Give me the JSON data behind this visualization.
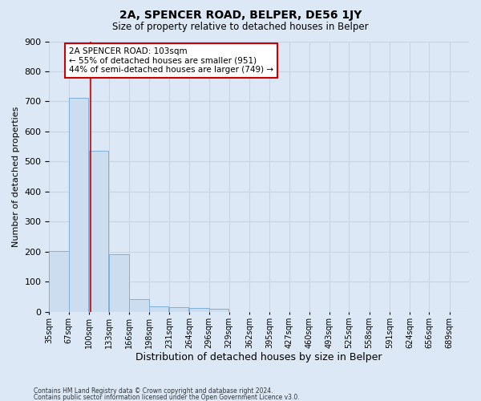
{
  "title": "2A, SPENCER ROAD, BELPER, DE56 1JY",
  "subtitle": "Size of property relative to detached houses in Belper",
  "xlabel": "Distribution of detached houses by size in Belper",
  "ylabel": "Number of detached properties",
  "bar_edges": [
    35,
    67,
    100,
    133,
    166,
    198,
    231,
    264,
    296,
    329,
    362,
    395,
    427,
    460,
    493,
    525,
    558,
    591,
    624,
    656,
    689
  ],
  "bar_values": [
    202,
    711,
    537,
    192,
    42,
    18,
    15,
    12,
    10,
    0,
    0,
    0,
    0,
    0,
    0,
    0,
    0,
    0,
    0,
    0
  ],
  "bar_color": "#ccddf0",
  "bar_edge_color": "#7fb0d8",
  "vline_x": 103,
  "vline_color": "#cc0000",
  "annotation_text": "2A SPENCER ROAD: 103sqm\n← 55% of detached houses are smaller (951)\n44% of semi-detached houses are larger (749) →",
  "annotation_box_color": "#ffffff",
  "annotation_box_edge": "#cc0000",
  "ylim": [
    0,
    900
  ],
  "yticks": [
    0,
    100,
    200,
    300,
    400,
    500,
    600,
    700,
    800,
    900
  ],
  "tick_labels": [
    "35sqm",
    "67sqm",
    "100sqm",
    "133sqm",
    "166sqm",
    "198sqm",
    "231sqm",
    "264sqm",
    "296sqm",
    "329sqm",
    "362sqm",
    "395sqm",
    "427sqm",
    "460sqm",
    "493sqm",
    "525sqm",
    "558sqm",
    "591sqm",
    "624sqm",
    "656sqm",
    "689sqm"
  ],
  "footer_line1": "Contains HM Land Registry data © Crown copyright and database right 2024.",
  "footer_line2": "Contains public sector information licensed under the Open Government Licence v3.0.",
  "grid_color": "#c8d4e4",
  "bg_color": "#dce8f5"
}
